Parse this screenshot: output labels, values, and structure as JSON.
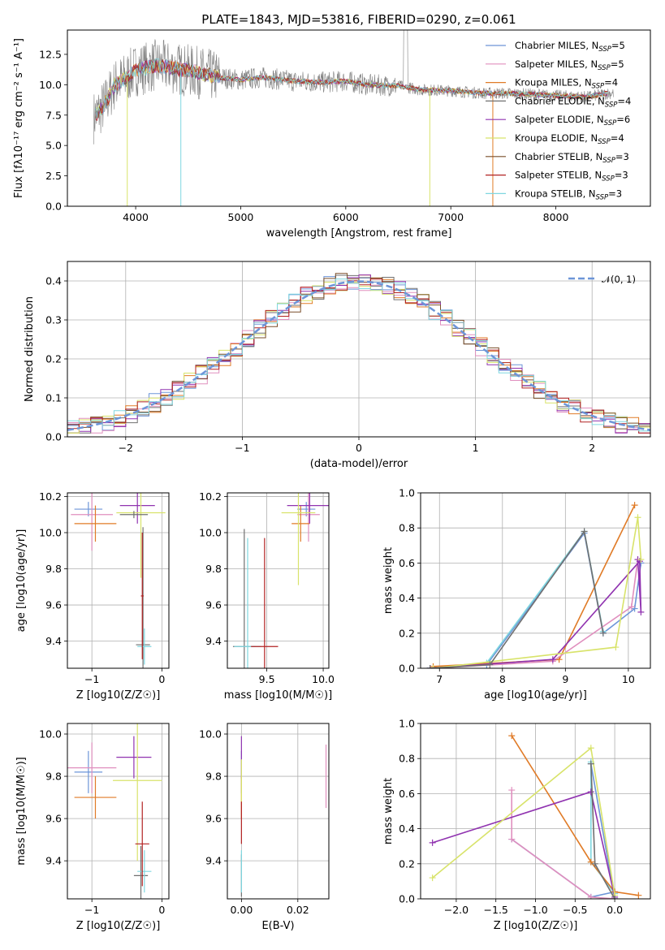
{
  "figure": {
    "title": "PLATE=1843, MJD=53816, FIBERID=0290, z=0.061"
  },
  "colors": {
    "grey_spectrum": "#808080",
    "legend_colors": [
      "#6d95d8",
      "#e08fbe",
      "#e07b27",
      "#707070",
      "#9033b0",
      "#d8e36a",
      "#7a4f2a",
      "#b22222",
      "#7fd7e0"
    ]
  },
  "chart_data": [
    {
      "id": "spectrum",
      "type": "line",
      "title": "PLATE=1843, MJD=53816, FIBERID=0290, z=0.061",
      "xlabel": "wavelength [Angstrom, rest frame]",
      "ylabel": "Flux [f_λ 10^-17 erg cm^-2 s^-1 A^-1]",
      "xlim": [
        3350,
        8900
      ],
      "ylim": [
        0,
        14.5
      ],
      "xticks": [
        4000,
        5000,
        6000,
        7000,
        8000
      ],
      "yticks": [
        "0.0",
        "2.5",
        "5.0",
        "7.5",
        "10.0",
        "12.5"
      ],
      "grid": false,
      "legend_placement": "upper right",
      "legend": [
        {
          "label": "Chabrier MILES",
          "nssp": "5",
          "color": "#6d95d8"
        },
        {
          "label": "Salpeter MILES",
          "nssp": "5",
          "color": "#e08fbe"
        },
        {
          "label": "Kroupa MILES",
          "nssp": "4",
          "color": "#e07b27"
        },
        {
          "label": "Chabrier ELODIE",
          "nssp": "4",
          "color": "#707070"
        },
        {
          "label": "Salpeter ELODIE",
          "nssp": "6",
          "color": "#9033b0"
        },
        {
          "label": "Kroupa ELODIE",
          "nssp": "4",
          "color": "#d8e36a"
        },
        {
          "label": "Chabrier STELIB",
          "nssp": "3",
          "color": "#7a4f2a"
        },
        {
          "label": "Salpeter STELIB",
          "nssp": "3",
          "color": "#b22222"
        },
        {
          "label": "Kroupa STELIB",
          "nssp": "3",
          "color": "#7fd7e0"
        }
      ],
      "spectrum_envelope": {
        "x": [
          3600,
          3700,
          3800,
          3900,
          4000,
          4200,
          4400,
          4600,
          4800,
          5000,
          5200,
          5500,
          5800,
          6000,
          6200,
          6500,
          6700,
          7000,
          7300,
          7500,
          7800,
          8000,
          8300,
          8500
        ],
        "y": [
          7.3,
          8.3,
          10.0,
          10.5,
          11.2,
          11.6,
          11.3,
          11.0,
          10.6,
          10.4,
          10.6,
          10.3,
          10.2,
          10.3,
          10.0,
          9.9,
          9.6,
          9.5,
          9.3,
          9.3,
          9.2,
          9.1,
          9.0,
          9.3
        ]
      }
    },
    {
      "id": "residuals",
      "type": "line",
      "xlabel": "(data-model)/error",
      "ylabel": "Normed distribution",
      "xlim": [
        -2.5,
        2.5
      ],
      "ylim": [
        0,
        0.45
      ],
      "xticks": [
        "−2",
        "−1",
        "0",
        "1",
        "2"
      ],
      "yticks": [
        "0.0",
        "0.1",
        "0.2",
        "0.3",
        "0.4"
      ],
      "grid": true,
      "legend_placement": "upper right",
      "legend": [
        {
          "label": "N(0,1)",
          "color": "#6d95d8",
          "style": "dashed"
        }
      ],
      "bin_width": 0.1
    },
    {
      "id": "age-vs-Z",
      "type": "scatter",
      "xlabel": "Z [log10(Z/Z☉)]",
      "ylabel": "age [log10(age/yr)]",
      "xlim": [
        -1.35,
        0.1
      ],
      "ylim": [
        9.25,
        10.22
      ],
      "xticks": [
        "−1",
        "0"
      ],
      "yticks": [
        "9.4",
        "9.6",
        "9.8",
        "10.0",
        "10.2"
      ],
      "grid": true,
      "points": [
        {
          "x": -1.05,
          "y": 10.13,
          "xerr": 0.2,
          "yerr": 0.04,
          "color": "#6d95d8"
        },
        {
          "x": -1.0,
          "y": 10.1,
          "xerr": 0.3,
          "yerr": 0.2,
          "color": "#e08fbe"
        },
        {
          "x": -0.95,
          "y": 10.05,
          "xerr": 0.3,
          "yerr": 0.1,
          "color": "#e07b27"
        },
        {
          "x": -0.35,
          "y": 10.15,
          "xerr": 0.25,
          "yerr": 0.1,
          "color": "#9033b0"
        },
        {
          "x": -0.3,
          "y": 10.11,
          "xerr": 0.35,
          "yerr": 0.36,
          "color": "#d8e36a"
        },
        {
          "x": -0.4,
          "y": 10.1,
          "xerr": 0.2,
          "yerr": 0.02,
          "color": "#707070"
        },
        {
          "x": -0.27,
          "y": 9.38,
          "xerr": 0.1,
          "yerr": 0.65,
          "color": "#707070"
        },
        {
          "x": -0.25,
          "y": 9.37,
          "xerr": 0.1,
          "yerr": 0.1,
          "color": "#7fd7e0"
        },
        {
          "x": -0.28,
          "y": 9.65,
          "xerr": 0.02,
          "yerr": 0.35,
          "color": "#b22222"
        }
      ]
    },
    {
      "id": "age-vs-mass",
      "type": "scatter",
      "xlabel": "mass [log10(M/M☉)]",
      "ylabel": "",
      "xlim": [
        9.15,
        10.05
      ],
      "ylim": [
        9.25,
        10.22
      ],
      "xticks": [
        "9.5",
        "10.0"
      ],
      "yticks": [
        "9.4",
        "9.6",
        "9.8",
        "10.0",
        "10.2"
      ],
      "grid": true,
      "points": [
        {
          "x": 9.85,
          "y": 10.13,
          "xerr": 0.08,
          "yerr": 0.04,
          "color": "#6d95d8"
        },
        {
          "x": 9.87,
          "y": 10.1,
          "xerr": 0.1,
          "yerr": 0.15,
          "color": "#e08fbe"
        },
        {
          "x": 9.8,
          "y": 10.05,
          "xerr": 0.08,
          "yerr": 0.1,
          "color": "#e07b27"
        },
        {
          "x": 9.88,
          "y": 10.15,
          "xerr": 0.2,
          "yerr": 0.1,
          "color": "#9033b0"
        },
        {
          "x": 9.78,
          "y": 10.11,
          "xerr": 0.15,
          "yerr": 0.4,
          "color": "#d8e36a"
        },
        {
          "x": 9.3,
          "y": 9.37,
          "xerr": 0.1,
          "yerr": 0.65,
          "color": "#707070"
        },
        {
          "x": 9.33,
          "y": 9.37,
          "xerr": 0.12,
          "yerr": 0.6,
          "color": "#7fd7e0"
        },
        {
          "x": 9.48,
          "y": 9.37,
          "xerr": 0.12,
          "yerr": 0.6,
          "color": "#b22222"
        }
      ]
    },
    {
      "id": "massweight-vs-age",
      "type": "line",
      "xlabel": "age [log10(age/yr)]",
      "ylabel": "mass weight",
      "xlim": [
        6.7,
        10.35
      ],
      "ylim": [
        0,
        1.0
      ],
      "xticks": [
        "7",
        "8",
        "9",
        "10"
      ],
      "yticks": [
        "0.0",
        "0.2",
        "0.4",
        "0.6",
        "0.8",
        "1.0"
      ],
      "grid": true,
      "series": [
        {
          "color": "#6d95d8",
          "x": [
            6.85,
            7.75,
            9.3,
            9.6,
            10.1,
            10.2
          ],
          "y": [
            0.0,
            0.02,
            0.77,
            0.2,
            0.34,
            0.6
          ]
        },
        {
          "color": "#7fd7e0",
          "x": [
            6.85,
            7.75,
            9.3,
            9.6
          ],
          "y": [
            0.0,
            0.03,
            0.78,
            0.21
          ]
        },
        {
          "color": "#e07b27",
          "x": [
            6.9,
            8.9,
            10.1
          ],
          "y": [
            0.01,
            0.05,
            0.93
          ]
        },
        {
          "color": "#e08fbe",
          "x": [
            6.9,
            8.8,
            10.05,
            10.15
          ],
          "y": [
            0.0,
            0.04,
            0.35,
            0.62
          ]
        },
        {
          "color": "#9033b0",
          "x": [
            6.85,
            8.8,
            10.18,
            10.2,
            10.15
          ],
          "y": [
            0.0,
            0.05,
            0.61,
            0.32,
            0.62
          ]
        },
        {
          "color": "#d8e36a",
          "x": [
            6.9,
            9.8,
            10.15,
            10.2
          ],
          "y": [
            0.0,
            0.12,
            0.86,
            0.62
          ]
        },
        {
          "color": "#707070",
          "x": [
            6.85,
            7.8,
            9.3,
            9.6
          ],
          "y": [
            0.0,
            0.02,
            0.78,
            0.2
          ]
        }
      ]
    },
    {
      "id": "mass-vs-Z",
      "type": "scatter",
      "xlabel": "Z [log10(Z/Z☉)]",
      "ylabel": "mass [log10(M/M☉)]",
      "xlim": [
        -1.35,
        0.1
      ],
      "ylim": [
        9.22,
        10.05
      ],
      "xticks": [
        "−1",
        "0"
      ],
      "yticks": [
        "9.4",
        "9.6",
        "9.8",
        "10.0"
      ],
      "grid": true,
      "points": [
        {
          "x": -1.05,
          "y": 9.82,
          "xerr": 0.2,
          "yerr": 0.1,
          "color": "#6d95d8"
        },
        {
          "x": -1.0,
          "y": 9.84,
          "xerr": 0.35,
          "yerr": 0.12,
          "color": "#e08fbe"
        },
        {
          "x": -0.95,
          "y": 9.7,
          "xerr": 0.3,
          "yerr": 0.1,
          "color": "#e07b27"
        },
        {
          "x": -0.4,
          "y": 9.89,
          "xerr": 0.25,
          "yerr": 0.1,
          "color": "#9033b0"
        },
        {
          "x": -0.35,
          "y": 9.78,
          "xerr": 0.35,
          "yerr": 0.38,
          "color": "#d8e36a"
        },
        {
          "x": -0.3,
          "y": 9.33,
          "xerr": 0.1,
          "yerr": 0.14,
          "color": "#707070"
        },
        {
          "x": -0.25,
          "y": 9.35,
          "xerr": 0.1,
          "yerr": 0.1,
          "color": "#7fd7e0"
        },
        {
          "x": -0.28,
          "y": 9.48,
          "xerr": 0.1,
          "yerr": 0.2,
          "color": "#b22222"
        }
      ]
    },
    {
      "id": "mass-vs-EBV",
      "type": "scatter",
      "xlabel": "E(B-V)",
      "ylabel": "",
      "xlim": [
        -0.005,
        0.031
      ],
      "ylim": [
        9.22,
        10.05
      ],
      "xticks": [
        "0.00",
        "0.02"
      ],
      "yticks": [
        "9.4",
        "9.6",
        "9.8",
        "10.0"
      ],
      "grid": true,
      "points": [
        {
          "x": 0.0,
          "y": 9.82,
          "yerr": 0.1,
          "color": "#6d95d8"
        },
        {
          "x": 0.03,
          "y": 9.8,
          "yerr": 0.15,
          "color": "#e08fbe"
        },
        {
          "x": 0.0,
          "y": 9.7,
          "yerr": 0.1,
          "color": "#e07b27"
        },
        {
          "x": 0.0,
          "y": 9.89,
          "yerr": 0.1,
          "color": "#9033b0"
        },
        {
          "x": 0.0,
          "y": 9.78,
          "yerr": 0.1,
          "color": "#d8e36a"
        },
        {
          "x": 0.0,
          "y": 9.33,
          "yerr": 0.1,
          "color": "#707070"
        },
        {
          "x": 0.0,
          "y": 9.35,
          "yerr": 0.1,
          "color": "#7fd7e0"
        },
        {
          "x": 0.0,
          "y": 9.58,
          "yerr": 0.1,
          "color": "#b22222"
        }
      ]
    },
    {
      "id": "massweight-vs-Z",
      "type": "line",
      "xlabel": "Z [log10(Z/Z☉)]",
      "ylabel": "mass weight",
      "xlim": [
        -2.45,
        0.45
      ],
      "ylim": [
        0,
        1.0
      ],
      "xticks": [
        "−2.0",
        "−1.5",
        "−1.0",
        "−0.5",
        "0.0"
      ],
      "yticks": [
        "0.0",
        "0.2",
        "0.4",
        "0.6",
        "0.8",
        "1.0"
      ],
      "grid": true,
      "series": [
        {
          "color": "#6d95d8",
          "x": [
            -1.3,
            -0.3,
            0.0,
            0.0,
            -0.3
          ],
          "y": [
            0.34,
            0.01,
            0.04,
            0.0,
            0.77
          ]
        },
        {
          "color": "#7fd7e0",
          "x": [
            -0.3,
            -0.3,
            0.0,
            0.0
          ],
          "y": [
            0.78,
            0.21,
            0.03,
            0.0
          ]
        },
        {
          "color": "#e07b27",
          "x": [
            -1.3,
            -0.3,
            0.0,
            0.3
          ],
          "y": [
            0.93,
            0.21,
            0.04,
            0.02
          ]
        },
        {
          "color": "#e08fbe",
          "x": [
            -1.3,
            -1.3,
            -0.3,
            0.0
          ],
          "y": [
            0.62,
            0.34,
            0.01,
            0.0
          ]
        },
        {
          "color": "#9033b0",
          "x": [
            -2.3,
            -0.3,
            0.0
          ],
          "y": [
            0.32,
            0.61,
            0.01
          ]
        },
        {
          "color": "#d8e36a",
          "x": [
            -2.3,
            -0.3,
            0.0
          ],
          "y": [
            0.12,
            0.86,
            0.02
          ]
        },
        {
          "color": "#707070",
          "x": [
            -0.3,
            -0.25,
            0.0
          ],
          "y": [
            0.77,
            0.2,
            0.0
          ]
        }
      ]
    }
  ]
}
